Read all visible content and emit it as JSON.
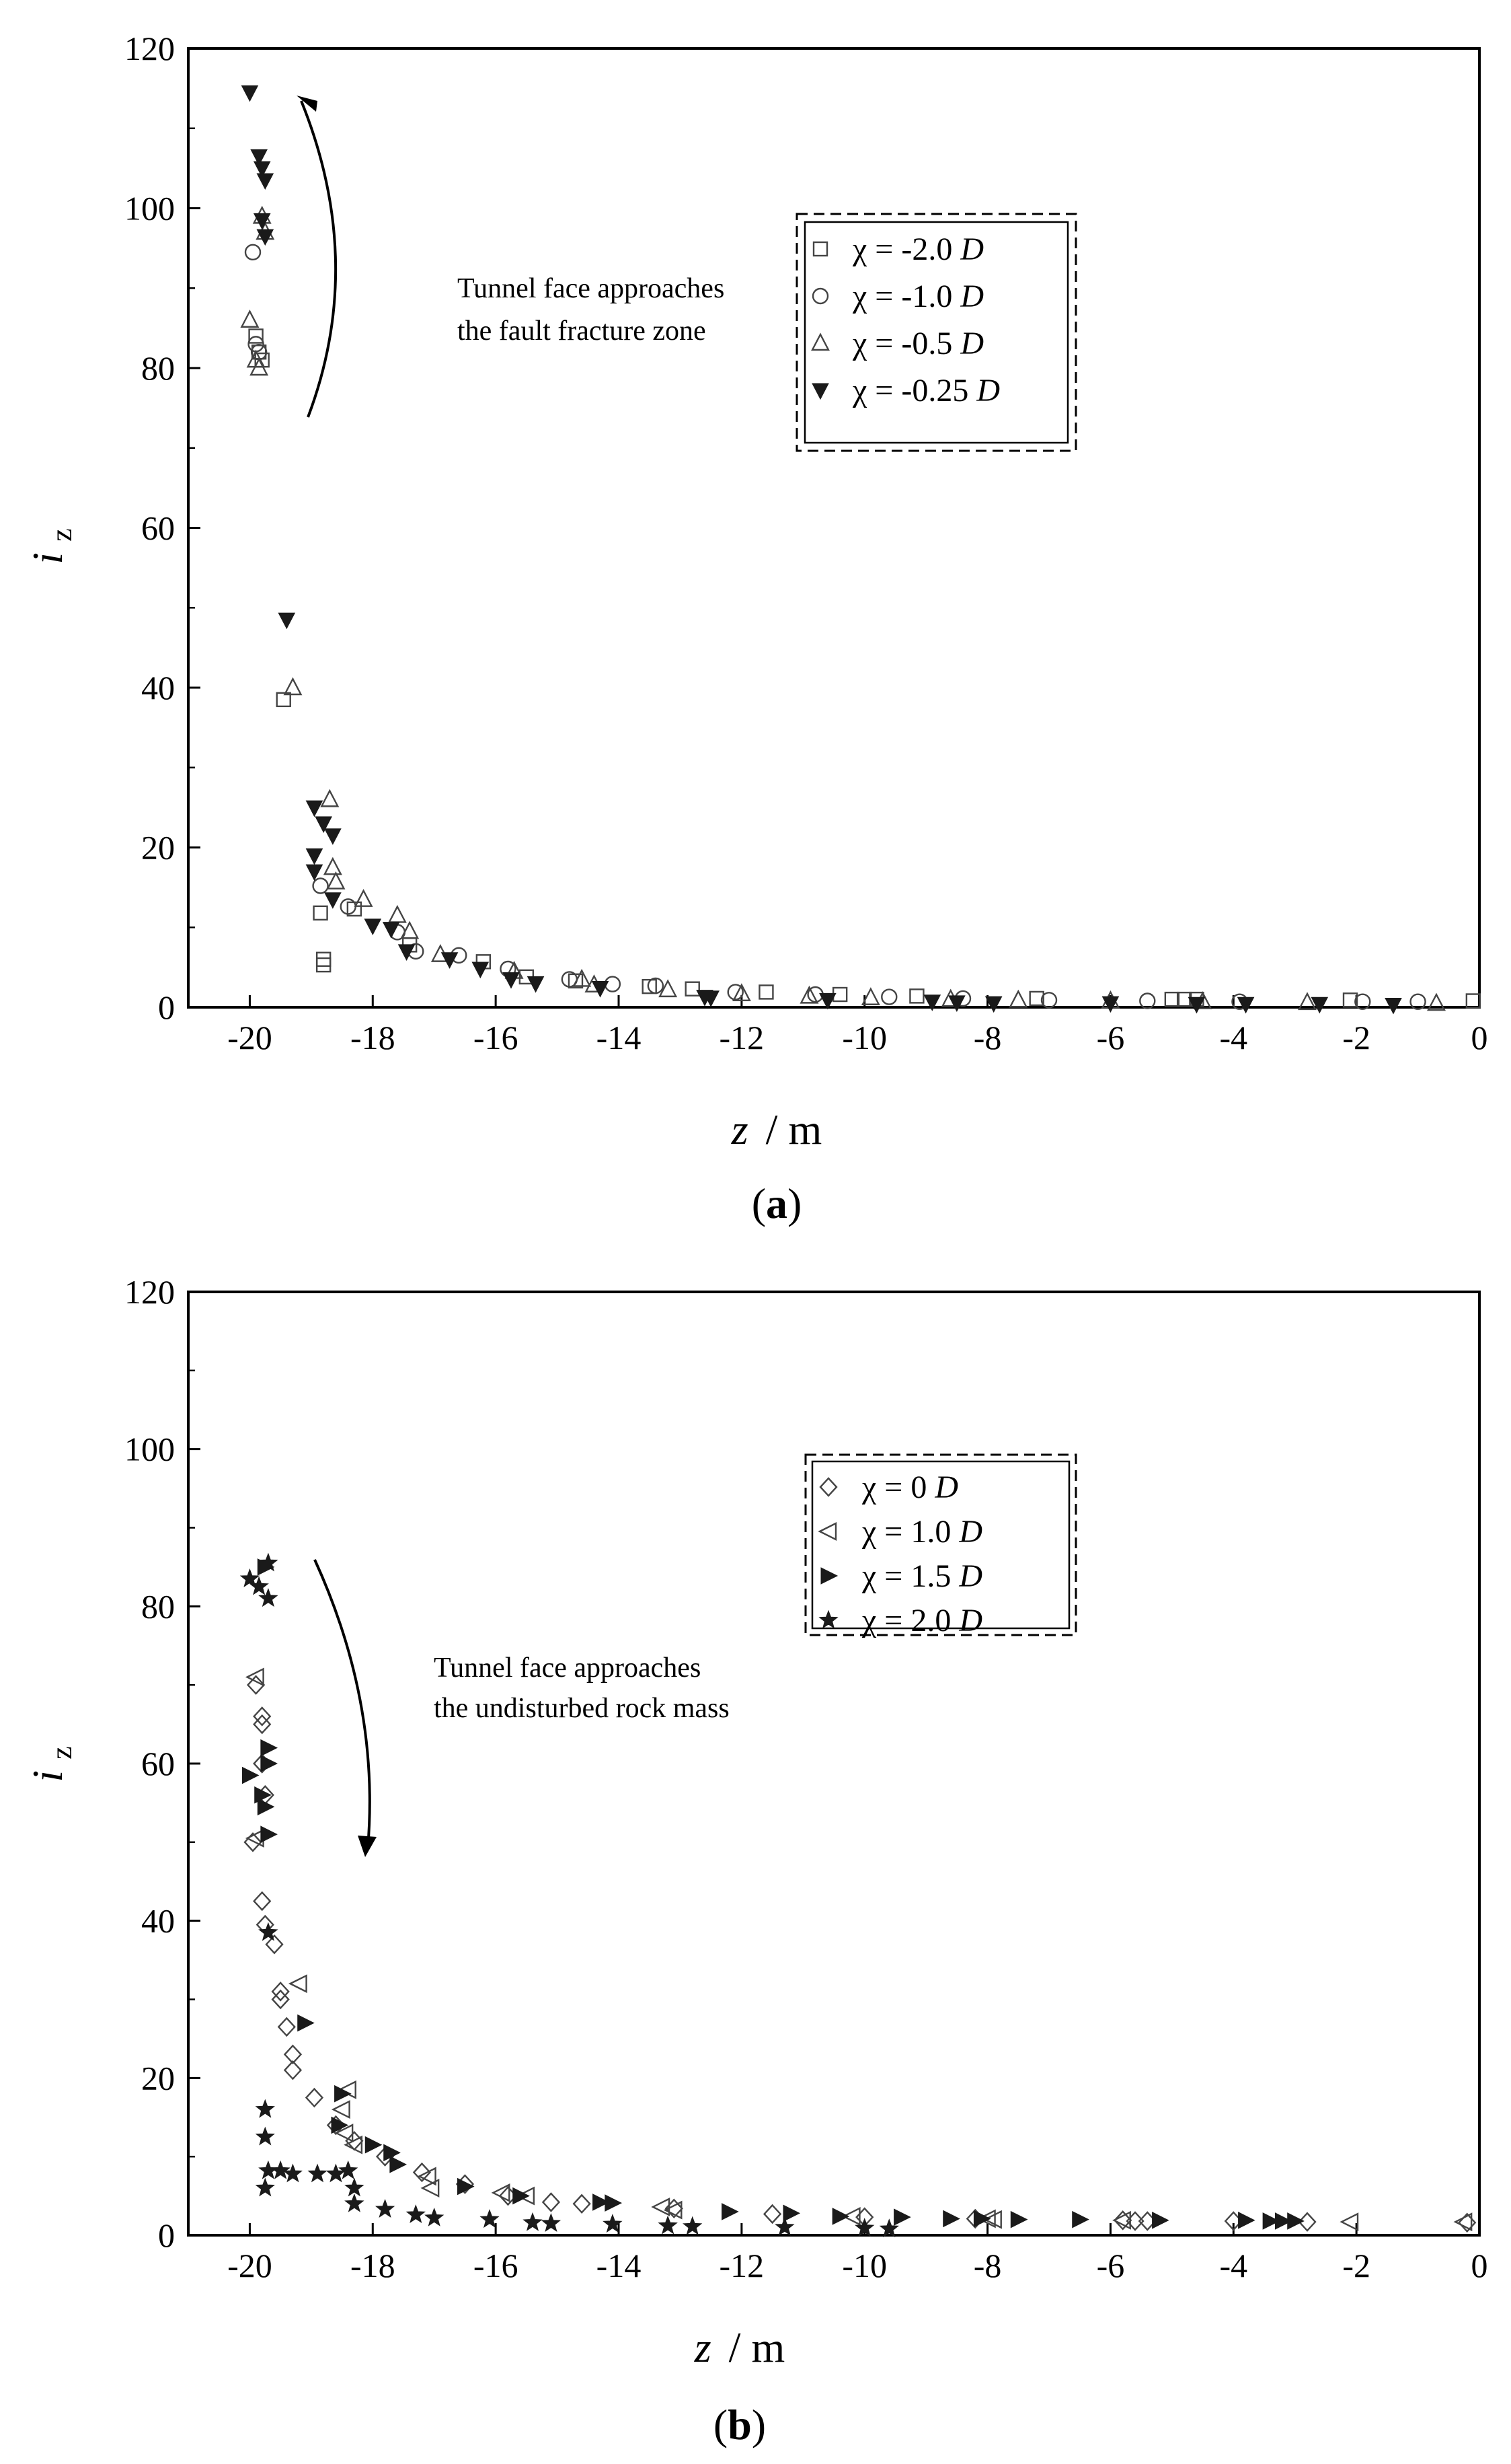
{
  "chart_data": [
    {
      "id": "a",
      "type": "scatter",
      "panel_label": "a",
      "xlabel": "z",
      "xlabel_unit": "/ m",
      "ylabel": "i",
      "ylabel_sub": "z",
      "xlim": [
        -21,
        0
      ],
      "ylim": [
        0,
        120
      ],
      "xticks": [
        -20,
        -18,
        -16,
        -14,
        -12,
        -10,
        -8,
        -6,
        -4,
        -2,
        0
      ],
      "yticks": [
        0,
        20,
        40,
        60,
        80,
        100,
        120
      ],
      "legend_position": "upper-right",
      "annotation": {
        "line1": "Tunnel face approaches",
        "line2": "the fault fracture zone",
        "arrow_direction": "up"
      },
      "series": [
        {
          "name": "χ = -2.0 D",
          "name_prefix": "χ = -2.0",
          "name_unit": "D",
          "marker": "square-open",
          "points": [
            [
              -19.9,
              84
            ],
            [
              -19.85,
              82
            ],
            [
              -19.8,
              81
            ],
            [
              -19.45,
              38.5
            ],
            [
              -18.85,
              11.8
            ],
            [
              -18.8,
              6
            ],
            [
              -18.8,
              5.3
            ],
            [
              -18.3,
              12.3
            ],
            [
              -17.4,
              7.8
            ],
            [
              -16.2,
              5.7
            ],
            [
              -15.5,
              3.8
            ],
            [
              -14.7,
              3.3
            ],
            [
              -13.5,
              2.6
            ],
            [
              -12.8,
              2.3
            ],
            [
              -11.6,
              1.9
            ],
            [
              -10.4,
              1.6
            ],
            [
              -9.15,
              1.4
            ],
            [
              -7.2,
              1.1
            ],
            [
              -5.0,
              1.0
            ],
            [
              -4.8,
              1.0
            ],
            [
              -4.6,
              1.0
            ],
            [
              -2.1,
              0.9
            ],
            [
              -0.1,
              0.8
            ]
          ]
        },
        {
          "name": "χ = -1.0 D",
          "name_prefix": "χ = -1.0",
          "name_unit": "D",
          "marker": "circle-open",
          "points": [
            [
              -19.95,
              94.5
            ],
            [
              -19.9,
              83
            ],
            [
              -19.85,
              82
            ],
            [
              -18.85,
              15.2
            ],
            [
              -18.4,
              12.6
            ],
            [
              -17.6,
              9.4
            ],
            [
              -17.3,
              7
            ],
            [
              -16.6,
              6.5
            ],
            [
              -15.8,
              4.8
            ],
            [
              -14.8,
              3.5
            ],
            [
              -14.1,
              2.9
            ],
            [
              -13.4,
              2.7
            ],
            [
              -12.1,
              1.9
            ],
            [
              -10.8,
              1.6
            ],
            [
              -9.6,
              1.3
            ],
            [
              -8.4,
              1.1
            ],
            [
              -7.0,
              0.9
            ],
            [
              -5.4,
              0.8
            ],
            [
              -3.9,
              0.7
            ],
            [
              -1.9,
              0.7
            ],
            [
              -1.0,
              0.7
            ]
          ]
        },
        {
          "name": "χ = -0.5 D",
          "name_prefix": "χ = -0.5",
          "name_unit": "D",
          "marker": "triangle-up-open",
          "points": [
            [
              -20.0,
              86
            ],
            [
              -19.9,
              81
            ],
            [
              -19.85,
              80
            ],
            [
              -19.8,
              99
            ],
            [
              -19.75,
              97
            ],
            [
              -19.3,
              40
            ],
            [
              -18.7,
              26
            ],
            [
              -18.65,
              17.5
            ],
            [
              -18.6,
              15.7
            ],
            [
              -18.15,
              13.5
            ],
            [
              -17.6,
              11.5
            ],
            [
              -17.4,
              9.5
            ],
            [
              -16.9,
              6.6
            ],
            [
              -15.7,
              4.5
            ],
            [
              -14.6,
              3.5
            ],
            [
              -14.4,
              2.8
            ],
            [
              -13.2,
              2.2
            ],
            [
              -12.0,
              1.7
            ],
            [
              -10.9,
              1.4
            ],
            [
              -9.9,
              1.2
            ],
            [
              -8.6,
              1.0
            ],
            [
              -7.5,
              0.9
            ],
            [
              -6.0,
              0.8
            ],
            [
              -4.5,
              0.7
            ],
            [
              -2.8,
              0.6
            ],
            [
              -0.7,
              0.5
            ]
          ]
        },
        {
          "name": "χ = -0.25 D",
          "name_prefix": "χ = -0.25",
          "name_unit": "D",
          "marker": "triangle-down-filled",
          "points": [
            [
              -20.0,
              114.5
            ],
            [
              -19.85,
              106.5
            ],
            [
              -19.8,
              105
            ],
            [
              -19.75,
              103.5
            ],
            [
              -19.8,
              98.5
            ],
            [
              -19.75,
              96.5
            ],
            [
              -19.4,
              48.5
            ],
            [
              -18.95,
              25
            ],
            [
              -18.8,
              23
            ],
            [
              -18.95,
              19
            ],
            [
              -18.95,
              17
            ],
            [
              -18.65,
              21.5
            ],
            [
              -18.65,
              13.5
            ],
            [
              -18.0,
              10.2
            ],
            [
              -17.7,
              9.8
            ],
            [
              -17.45,
              7
            ],
            [
              -16.75,
              6
            ],
            [
              -16.25,
              4.8
            ],
            [
              -15.75,
              3.5
            ],
            [
              -15.35,
              3.0
            ],
            [
              -14.3,
              2.4
            ],
            [
              -12.6,
              1.3
            ],
            [
              -12.5,
              1.2
            ],
            [
              -10.6,
              0.9
            ],
            [
              -8.9,
              0.7
            ],
            [
              -8.5,
              0.6
            ],
            [
              -7.9,
              0.5
            ],
            [
              -6.0,
              0.5
            ],
            [
              -4.6,
              0.4
            ],
            [
              -3.8,
              0.4
            ],
            [
              -2.6,
              0.4
            ],
            [
              -1.4,
              0.3
            ]
          ]
        }
      ]
    },
    {
      "id": "b",
      "type": "scatter",
      "panel_label": "b",
      "xlabel": "z",
      "xlabel_unit": "/ m",
      "ylabel": "i",
      "ylabel_sub": "z",
      "xlim": [
        -21,
        0
      ],
      "ylim": [
        0,
        120
      ],
      "xticks": [
        -20,
        -18,
        -16,
        -14,
        -12,
        -10,
        -8,
        -6,
        -4,
        -2,
        0
      ],
      "yticks": [
        0,
        20,
        40,
        60,
        80,
        100,
        120
      ],
      "legend_position": "upper-right",
      "annotation": {
        "line1": "Tunnel face approaches",
        "line2": "the undisturbed rock mass",
        "arrow_direction": "down"
      },
      "series": [
        {
          "name": "χ = 0 D",
          "name_prefix": "χ = 0",
          "name_unit": "D",
          "marker": "diamond-open",
          "points": [
            [
              -19.9,
              70
            ],
            [
              -19.8,
              66
            ],
            [
              -19.8,
              65
            ],
            [
              -19.8,
              60
            ],
            [
              -19.75,
              56
            ],
            [
              -19.95,
              50
            ],
            [
              -19.8,
              42.5
            ],
            [
              -19.75,
              39.5
            ],
            [
              -19.6,
              37
            ],
            [
              -19.5,
              31
            ],
            [
              -19.5,
              30
            ],
            [
              -19.4,
              26.5
            ],
            [
              -19.3,
              23
            ],
            [
              -19.3,
              21
            ],
            [
              -18.95,
              17.5
            ],
            [
              -18.6,
              14
            ],
            [
              -18.3,
              12
            ],
            [
              -17.8,
              10
            ],
            [
              -17.2,
              8
            ],
            [
              -16.5,
              6.5
            ],
            [
              -15.8,
              5
            ],
            [
              -15.1,
              4.2
            ],
            [
              -14.6,
              4
            ],
            [
              -13.1,
              3.4
            ],
            [
              -11.5,
              2.7
            ],
            [
              -10.0,
              2.3
            ],
            [
              -8.2,
              2.1
            ],
            [
              -5.8,
              1.9
            ],
            [
              -5.6,
              1.8
            ],
            [
              -5.4,
              1.8
            ],
            [
              -4.0,
              1.8
            ],
            [
              -2.8,
              1.7
            ],
            [
              -0.2,
              1.6
            ]
          ]
        },
        {
          "name": "χ = 1.0 D",
          "name_prefix": "χ = 1.0",
          "name_unit": "D",
          "marker": "triangle-left-open",
          "points": [
            [
              -19.9,
              71
            ],
            [
              -19.9,
              50.5
            ],
            [
              -19.2,
              32
            ],
            [
              -18.4,
              18.5
            ],
            [
              -18.5,
              16
            ],
            [
              -18.45,
              13
            ],
            [
              -18.3,
              11.5
            ],
            [
              -17.1,
              7.5
            ],
            [
              -17.05,
              6
            ],
            [
              -15.9,
              5.4
            ],
            [
              -15.5,
              5
            ],
            [
              -13.3,
              3.6
            ],
            [
              -13.1,
              3.2
            ],
            [
              -10.2,
              2.4
            ],
            [
              -8.0,
              2.1
            ],
            [
              -7.9,
              2.0
            ],
            [
              -5.8,
              1.9
            ],
            [
              -2.1,
              1.7
            ],
            [
              -0.25,
              1.7
            ]
          ]
        },
        {
          "name": "χ = 1.5 D",
          "name_prefix": "χ = 1.5",
          "name_unit": "D",
          "marker": "triangle-right-filled",
          "points": [
            [
              -19.75,
              85
            ],
            [
              -19.7,
              62
            ],
            [
              -19.7,
              60
            ],
            [
              -20.0,
              58.5
            ],
            [
              -19.8,
              56
            ],
            [
              -19.75,
              54.5
            ],
            [
              -19.7,
              51
            ],
            [
              -19.1,
              27
            ],
            [
              -18.5,
              18
            ],
            [
              -18.55,
              14
            ],
            [
              -18.0,
              11.5
            ],
            [
              -17.7,
              10.5
            ],
            [
              -17.6,
              9
            ],
            [
              -16.5,
              6.2
            ],
            [
              -15.6,
              5
            ],
            [
              -14.3,
              4.2
            ],
            [
              -14.1,
              4.1
            ],
            [
              -12.2,
              3.0
            ],
            [
              -11.2,
              2.8
            ],
            [
              -10.4,
              2.4
            ],
            [
              -9.4,
              2.3
            ],
            [
              -8.6,
              2.1
            ],
            [
              -8.1,
              2.1
            ],
            [
              -7.5,
              2.0
            ],
            [
              -6.5,
              2.0
            ],
            [
              -5.2,
              1.9
            ],
            [
              -3.8,
              1.9
            ],
            [
              -3.4,
              1.8
            ],
            [
              -3.2,
              1.8
            ],
            [
              -3.0,
              1.8
            ]
          ]
        },
        {
          "name": "χ = 2.0 D",
          "name_prefix": "χ = 2.0",
          "name_unit": "D",
          "marker": "star-filled",
          "points": [
            [
              -20.0,
              83.5
            ],
            [
              -19.85,
              82.5
            ],
            [
              -19.7,
              85.5
            ],
            [
              -19.7,
              81
            ],
            [
              -19.7,
              38.5
            ],
            [
              -19.75,
              16
            ],
            [
              -19.75,
              12.5
            ],
            [
              -19.75,
              6
            ],
            [
              -19.7,
              8.2
            ],
            [
              -19.5,
              8.2
            ],
            [
              -19.3,
              7.8
            ],
            [
              -18.9,
              7.8
            ],
            [
              -18.6,
              7.8
            ],
            [
              -18.4,
              8.2
            ],
            [
              -18.3,
              6
            ],
            [
              -18.3,
              4
            ],
            [
              -17.8,
              3.3
            ],
            [
              -17.3,
              2.6
            ],
            [
              -17.0,
              2.2
            ],
            [
              -16.1,
              2.0
            ],
            [
              -15.4,
              1.6
            ],
            [
              -15.1,
              1.5
            ],
            [
              -14.1,
              1.4
            ],
            [
              -13.2,
              1.2
            ],
            [
              -12.8,
              1.1
            ],
            [
              -11.3,
              1.0
            ],
            [
              -10.0,
              0.9
            ],
            [
              -9.6,
              0.8
            ]
          ]
        }
      ]
    }
  ]
}
